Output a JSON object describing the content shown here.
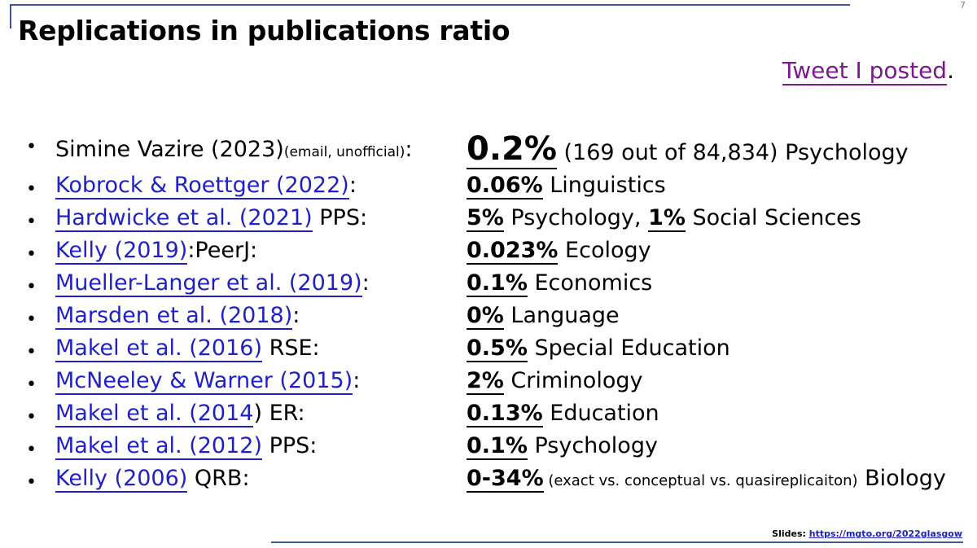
{
  "slide_number": "7",
  "title": "Replications in publications ratio",
  "tweet": {
    "link_text": "Tweet I posted",
    "suffix": "."
  },
  "rows": [
    {
      "bullet": "•",
      "source": "Simine Vazire (2023)",
      "source_note": "(email, unofficial)",
      "after": ":",
      "pct": "0.2%",
      "detail": " (169 out of 84,834) Psychology"
    },
    {
      "bullet": "•",
      "source_link": "Kobrock & Roettger (2022)",
      "after": ":",
      "pct": "0.06%",
      "field": " Linguistics"
    },
    {
      "bullet": "•",
      "source_link": "Hardwicke et al. (2021)",
      "after": " PPS:",
      "pct": "5%",
      "field": " Psychology, ",
      "pct2": "1%",
      "field2": " Social Sciences"
    },
    {
      "bullet": "•",
      "source_link": "Kelly (2019)",
      "after": ":PeerJ:",
      "pct": "0.023%",
      "field": " Ecology"
    },
    {
      "bullet": "•",
      "source_link": "Mueller-Langer et al. (2019)",
      "after": ":",
      "pct": "0.1%",
      "field": " Economics"
    },
    {
      "bullet": "•",
      "source_link": "Marsden et al. (2018)",
      "after": ":",
      "pct": "0%",
      "field": " Language"
    },
    {
      "bullet": "•",
      "source_link": "Makel et al. (2016)",
      "after": " RSE:",
      "pct": "0.5%",
      "field": " Special Education"
    },
    {
      "bullet": "•",
      "source_link": "McNeeley & Warner (2015)",
      "after": ":",
      "pct": "2%",
      "field": " Criminology"
    },
    {
      "bullet": "•",
      "source_link": "Makel et al. (2014",
      "after": ") ER:",
      "pct": "0.13%",
      "field": " Education"
    },
    {
      "bullet": "•",
      "source_link": "Makel et al. (2012)",
      "after": " PPS:",
      "pct": "0.1%",
      "field": " Psychology"
    },
    {
      "bullet": "•",
      "source_link": "Kelly (2006)",
      "after": " QRB:",
      "pct": "0-34%",
      "note": " (exact vs. conceptual vs. quasireplicaiton)",
      "field": " Biology"
    }
  ],
  "footer": {
    "label": "Slides:",
    "url": "https://mgto.org/2022glasgow"
  }
}
